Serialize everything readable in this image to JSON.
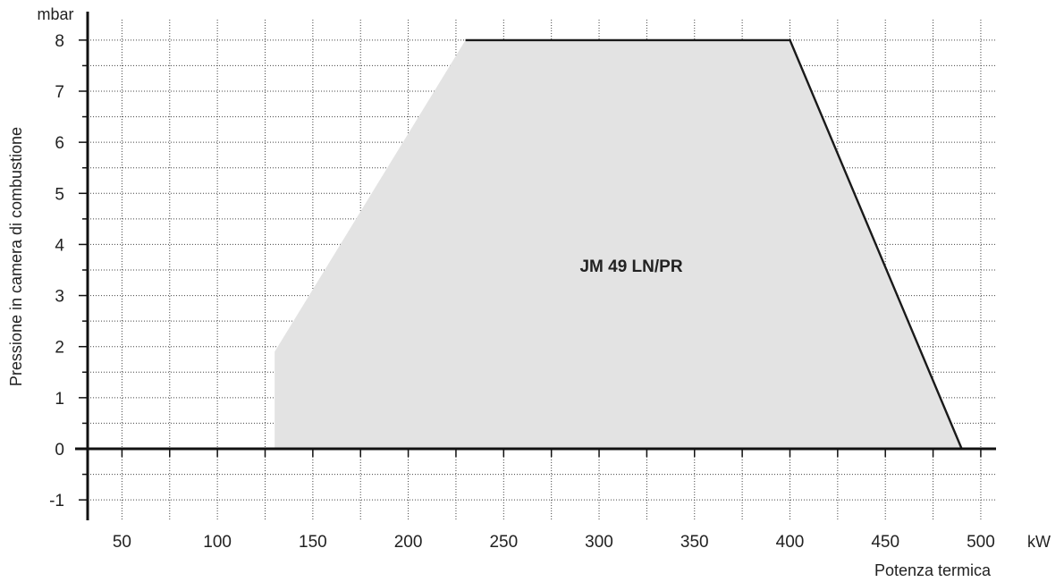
{
  "chart_data": {
    "type": "area",
    "title": "",
    "xlabel": "Potenza termica",
    "ylabel": "Pressione in camera di combustione",
    "x_unit": "kW",
    "y_unit": "mbar",
    "xlim": [
      32,
      508
    ],
    "ylim": [
      -1.4,
      8.4
    ],
    "x_ticks": [
      50,
      100,
      150,
      200,
      250,
      300,
      350,
      400,
      450,
      500
    ],
    "y_ticks": [
      -1,
      0,
      1,
      2,
      3,
      4,
      5,
      6,
      7,
      8
    ],
    "x_tick_labels": [
      "50",
      "100",
      "150",
      "200",
      "250",
      "300",
      "350",
      "400",
      "450",
      "500"
    ],
    "y_tick_labels": [
      "-1",
      "0",
      "1",
      "2",
      "3",
      "4",
      "5",
      "6",
      "7",
      "8"
    ],
    "grid": true,
    "series": [
      {
        "name": "JM 49 LN/PR",
        "fill_color": "#e3e3e3",
        "x": [
          130,
          130,
          230,
          400,
          490
        ],
        "y": [
          0,
          1.9,
          8,
          8,
          0
        ]
      }
    ],
    "annotations": [
      {
        "text": "JM 49 LN/PR",
        "x": 300,
        "y": 4
      }
    ]
  }
}
